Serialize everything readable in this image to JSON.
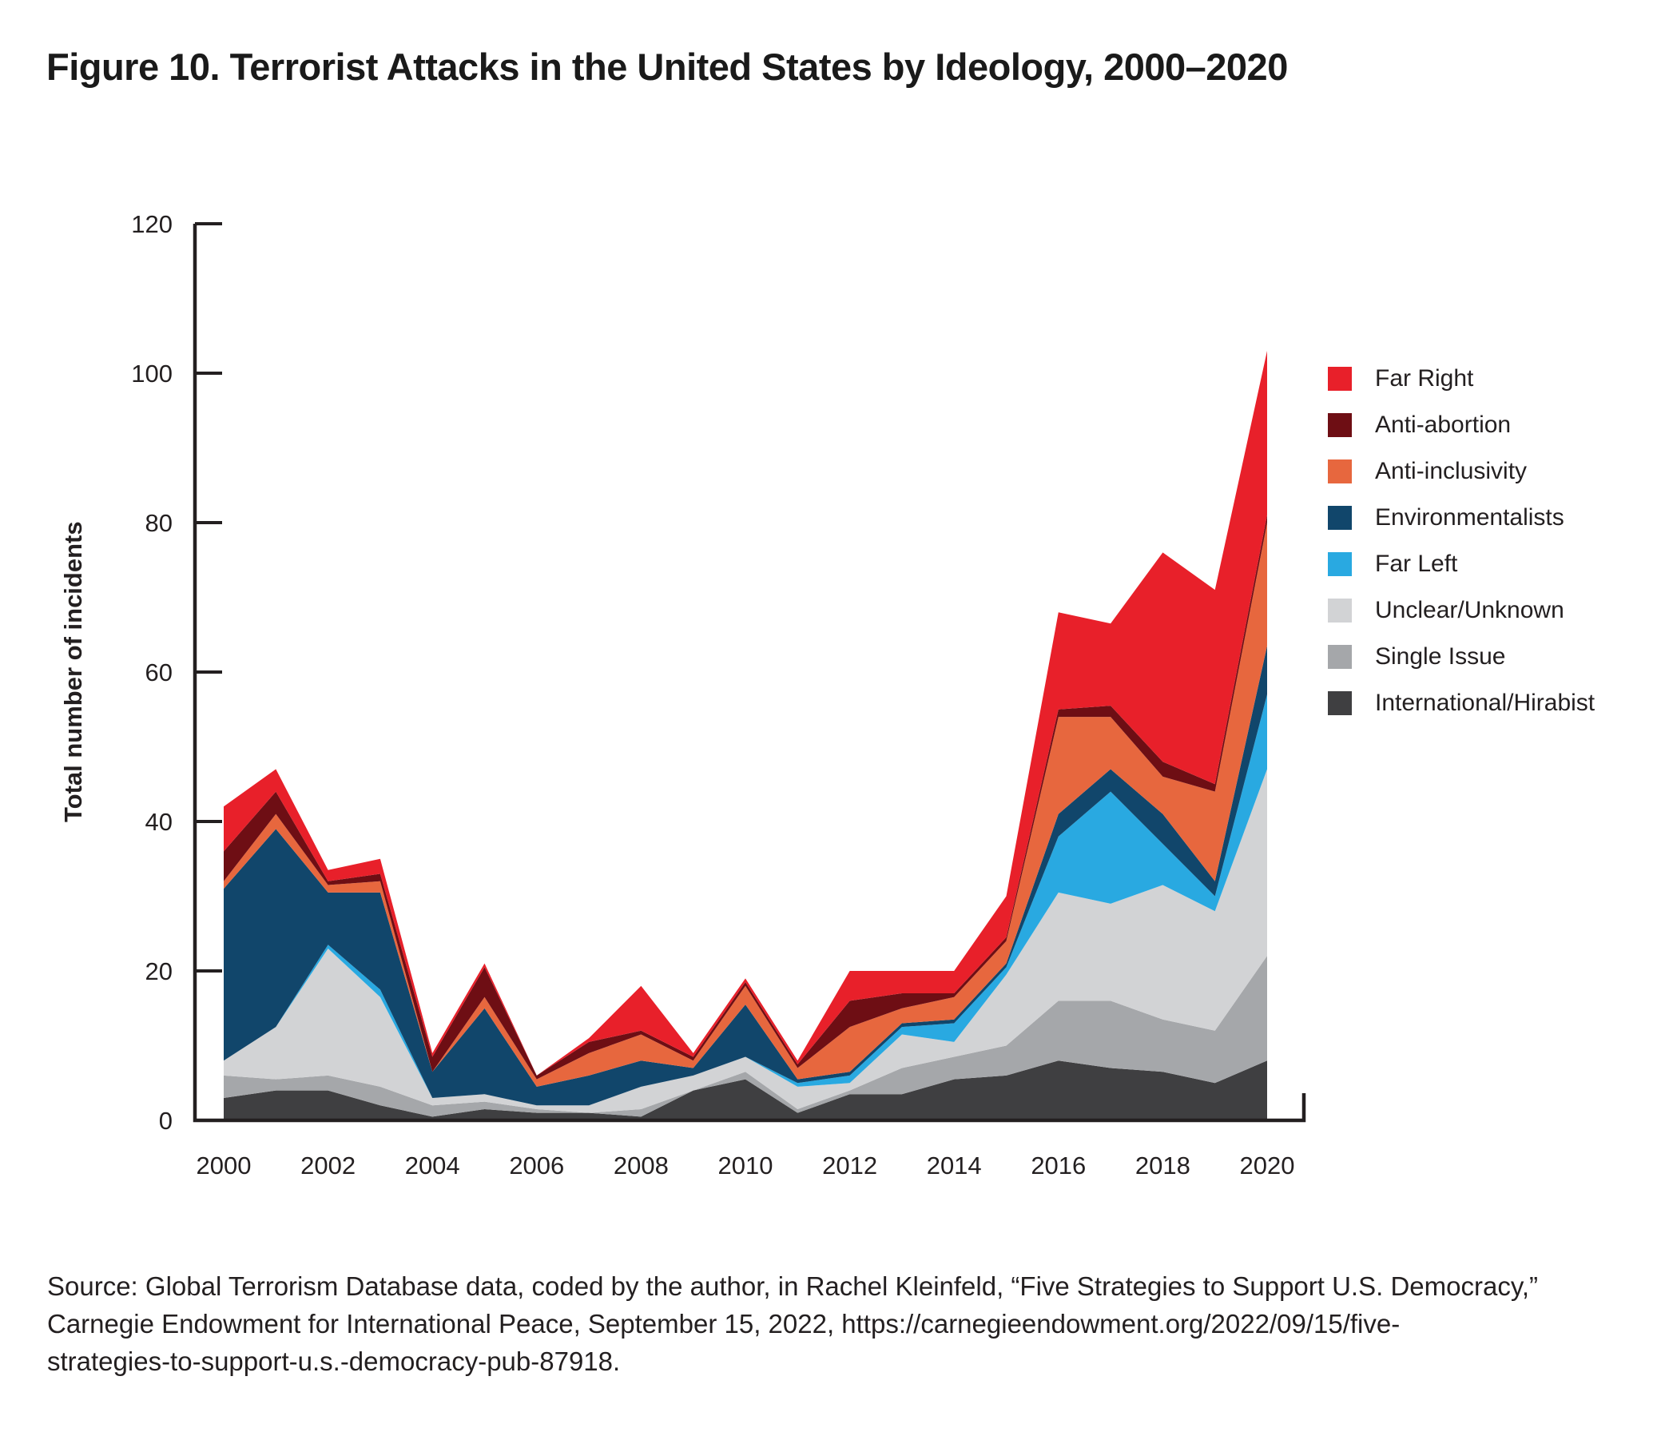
{
  "title": "Figure 10. Terrorist Attacks in the United States by Ideology, 2000–2020",
  "y_axis": {
    "label": "Total number of incidents",
    "ticks": [
      0,
      20,
      40,
      60,
      80,
      100,
      120
    ],
    "max": 120
  },
  "x_axis": {
    "labels": [
      "2000",
      "2002",
      "2004",
      "2006",
      "2008",
      "2010",
      "2012",
      "2014",
      "2016",
      "2018",
      "2020"
    ]
  },
  "legend": [
    {
      "label": "Far Right",
      "color": "#E8202A"
    },
    {
      "label": "Anti-abortion",
      "color": "#6E0E14"
    },
    {
      "label": "Anti-inclusivity",
      "color": "#E7673E"
    },
    {
      "label": "Environmentalists",
      "color": "#11466B"
    },
    {
      "label": "Far Left",
      "color": "#29A9E1"
    },
    {
      "label": "Unclear/Unknown",
      "color": "#D2D3D5"
    },
    {
      "label": "Single Issue",
      "color": "#A5A7AA"
    },
    {
      "label": "International/Hirabist",
      "color": "#3F3F41"
    }
  ],
  "source": {
    "lines": [
      "Source: Global Terrorism Database data, coded by the author, in Rachel Kleinfeld, “Five Strategies to Support U.S. Democracy,”",
      "Carnegie Endowment for International Peace, September 15, 2022, https://carnegieendowment.org/2022/09/15/five-",
      "strategies-to-support-u.s.-democracy-pub-87918."
    ]
  },
  "chart_data": {
    "type": "area",
    "stacked": true,
    "title": "Figure 10. Terrorist Attacks in the United States by Ideology, 2000–2020",
    "xlabel": "",
    "ylabel": "Total number of incidents",
    "ylim": [
      0,
      120
    ],
    "grid": false,
    "legend_position": "right",
    "x": [
      2000,
      2001,
      2002,
      2003,
      2004,
      2005,
      2006,
      2007,
      2008,
      2009,
      2010,
      2011,
      2012,
      2013,
      2014,
      2015,
      2016,
      2017,
      2018,
      2019,
      2020
    ],
    "series": [
      {
        "name": "International/Hirabist",
        "color": "#3F3F41",
        "values": [
          3,
          4,
          4,
          2,
          0.5,
          1.5,
          1,
          1,
          0.5,
          4,
          5.5,
          1,
          3.5,
          3.5,
          5.5,
          6,
          8,
          7,
          6.5,
          5,
          8
        ]
      },
      {
        "name": "Single Issue",
        "color": "#A5A7AA",
        "values": [
          3,
          1.5,
          2,
          2.5,
          1.5,
          1,
          0.5,
          0,
          1,
          0,
          1,
          0.5,
          0.5,
          3.5,
          3,
          4,
          8,
          9,
          7,
          7,
          14
        ]
      },
      {
        "name": "Unclear/Unknown",
        "color": "#D2D3D5",
        "values": [
          2,
          7,
          17,
          12,
          1,
          1,
          0.5,
          1,
          3,
          2,
          2,
          3,
          1,
          4.5,
          2,
          9.5,
          14.5,
          13,
          18,
          16,
          25
        ]
      },
      {
        "name": "Far Left",
        "color": "#29A9E1",
        "values": [
          0,
          0,
          0.5,
          1,
          0,
          0,
          0,
          0,
          0,
          0,
          0,
          0.5,
          1,
          1,
          2.5,
          1,
          7.5,
          15,
          5.5,
          2,
          10
        ]
      },
      {
        "name": "Environmentalists",
        "color": "#11466B",
        "values": [
          23,
          26.5,
          7,
          13,
          3.5,
          11.5,
          2.5,
          4,
          3.5,
          1,
          7,
          0.5,
          0.5,
          0.5,
          0.5,
          0.5,
          3,
          3,
          4,
          2,
          6.5
        ]
      },
      {
        "name": "Anti-inclusivity",
        "color": "#E7673E",
        "values": [
          1,
          2,
          1,
          1.5,
          0,
          1.5,
          1,
          3,
          3.5,
          1,
          2.5,
          1.5,
          6,
          2,
          3,
          3,
          13,
          7,
          5,
          12,
          16.5
        ]
      },
      {
        "name": "Anti-abortion",
        "color": "#6E0E14",
        "values": [
          4,
          3,
          0.5,
          1,
          2,
          4,
          0.5,
          1.5,
          0.5,
          0.5,
          0.5,
          0.5,
          3.5,
          2,
          0.5,
          0.5,
          1,
          1.5,
          2,
          1,
          1
        ]
      },
      {
        "name": "Far Right",
        "color": "#E8202A",
        "values": [
          6,
          3,
          1.5,
          2,
          0.5,
          0.5,
          0,
          0.5,
          6,
          0.5,
          0.5,
          0.5,
          4,
          3,
          3,
          5.5,
          13,
          11,
          28,
          26,
          22
        ]
      }
    ],
    "totals": [
      42,
      47,
      33.5,
      35,
      9,
      21,
      6,
      11,
      18,
      9,
      19,
      8,
      20,
      20,
      20,
      30,
      68,
      66.5,
      76,
      71,
      103
    ]
  }
}
